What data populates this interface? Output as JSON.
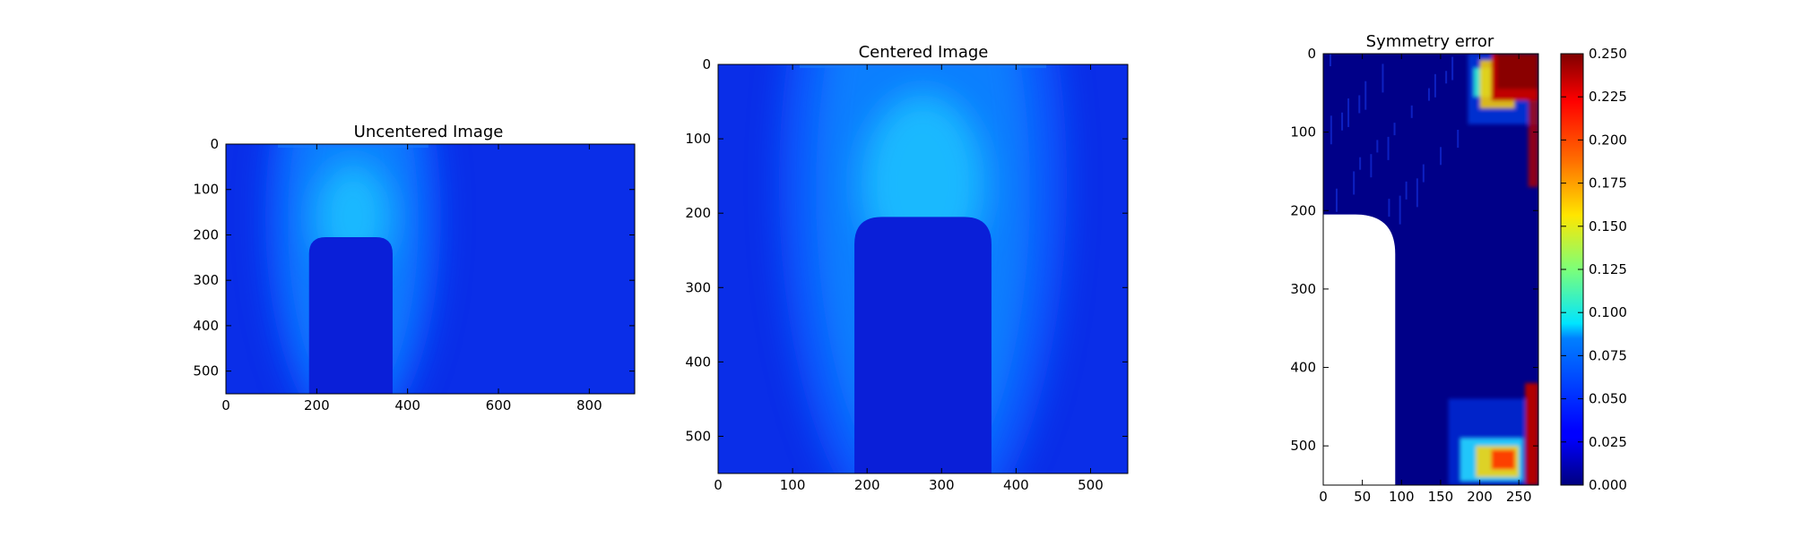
{
  "chart_data": [
    {
      "type": "heatmap",
      "title": "Uncentered Image",
      "xlabel": "",
      "ylabel": "",
      "xlim": [
        0,
        900
      ],
      "ylim": [
        550,
        0
      ],
      "x_ticks": [
        0,
        200,
        400,
        600,
        800
      ],
      "y_ticks": [
        0,
        100,
        200,
        300,
        400,
        500
      ],
      "colormap": "jet",
      "features": {
        "bright_center_x": 280,
        "arch": {
          "x_left": 183,
          "x_right": 367,
          "y_top": 205,
          "y_bottom": 550
        }
      }
    },
    {
      "type": "heatmap",
      "title": "Centered Image",
      "xlabel": "",
      "ylabel": "",
      "xlim": [
        0,
        550
      ],
      "ylim": [
        550,
        0
      ],
      "x_ticks": [
        0,
        100,
        200,
        300,
        400,
        500
      ],
      "y_ticks": [
        0,
        100,
        200,
        300,
        400,
        500
      ],
      "colormap": "jet",
      "features": {
        "bright_center_x": 275,
        "arch": {
          "x_left": 183,
          "x_right": 367,
          "y_top": 205,
          "y_bottom": 550
        }
      }
    },
    {
      "type": "heatmap",
      "title": "Symmetry error",
      "xlabel": "",
      "ylabel": "",
      "xlim": [
        0,
        275
      ],
      "ylim": [
        550,
        0
      ],
      "x_ticks": [
        0,
        50,
        100,
        150,
        200,
        250
      ],
      "y_ticks": [
        0,
        100,
        200,
        300,
        400,
        500
      ],
      "colormap": "jet",
      "features": {
        "blank_region": {
          "x_left": 0,
          "x_right": 92,
          "y_top": 205,
          "y_bottom": 550
        },
        "high_error_top": {
          "x_from": 180,
          "x_to": 275,
          "y_from": 0,
          "y_to": 90
        },
        "high_error_bottom": {
          "x_from": 160,
          "x_to": 275,
          "y_from": 440,
          "y_to": 550
        }
      },
      "colorbar": {
        "vmin": 0.0,
        "vmax": 0.25,
        "tick_labels": [
          "0.250",
          "0.225",
          "0.200",
          "0.175",
          "0.150",
          "0.125",
          "0.100",
          "0.075",
          "0.050",
          "0.025",
          "0.000"
        ]
      }
    }
  ]
}
